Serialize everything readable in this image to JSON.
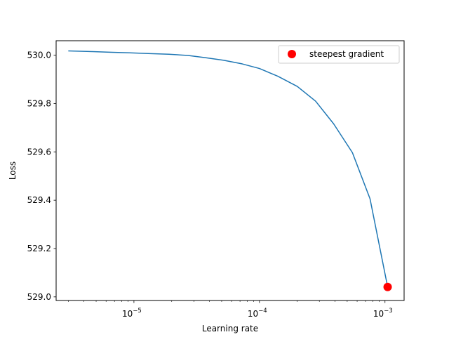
{
  "chart_data": {
    "type": "line",
    "xlabel": "Learning rate",
    "ylabel": "Loss",
    "xscale": "log",
    "xlim": [
      2.4e-06,
      0.00142
    ],
    "ylim": [
      528.985,
      530.06
    ],
    "x_ticks": [
      {
        "value": 1e-05,
        "base": "10",
        "exp": "−5"
      },
      {
        "value": 0.0001,
        "base": "10",
        "exp": "−4"
      },
      {
        "value": 0.001,
        "base": "10",
        "exp": "−3"
      }
    ],
    "y_ticks": [
      {
        "value": 529.0,
        "label": "529.0"
      },
      {
        "value": 529.2,
        "label": "529.2"
      },
      {
        "value": 529.4,
        "label": "529.4"
      },
      {
        "value": 529.6,
        "label": "529.6"
      },
      {
        "value": 529.8,
        "label": "529.8"
      },
      {
        "value": 530.0,
        "label": "530.0"
      }
    ],
    "grid": false,
    "legend_position": "top-right",
    "series": [
      {
        "color": "#1f77b4",
        "x": [
          3e-06,
          4.7e-06,
          6.7e-06,
          9.3e-06,
          1.3e-05,
          1.9e-05,
          2.7e-05,
          3.7e-05,
          5.2e-05,
          7.3e-05,
          0.0001,
          0.00014,
          0.0002,
          0.00028,
          0.00039,
          0.00055,
          0.00076,
          0.00105
        ],
        "y": [
          530.018,
          530.015,
          530.012,
          530.01,
          530.007,
          530.004,
          529.999,
          529.99,
          529.979,
          529.964,
          529.945,
          529.913,
          529.871,
          529.81,
          529.716,
          529.597,
          529.406,
          529.041
        ]
      }
    ],
    "marker": {
      "label": "steepest gradient",
      "color": "#ff0000",
      "x": 0.00105,
      "y": 529.041
    }
  }
}
